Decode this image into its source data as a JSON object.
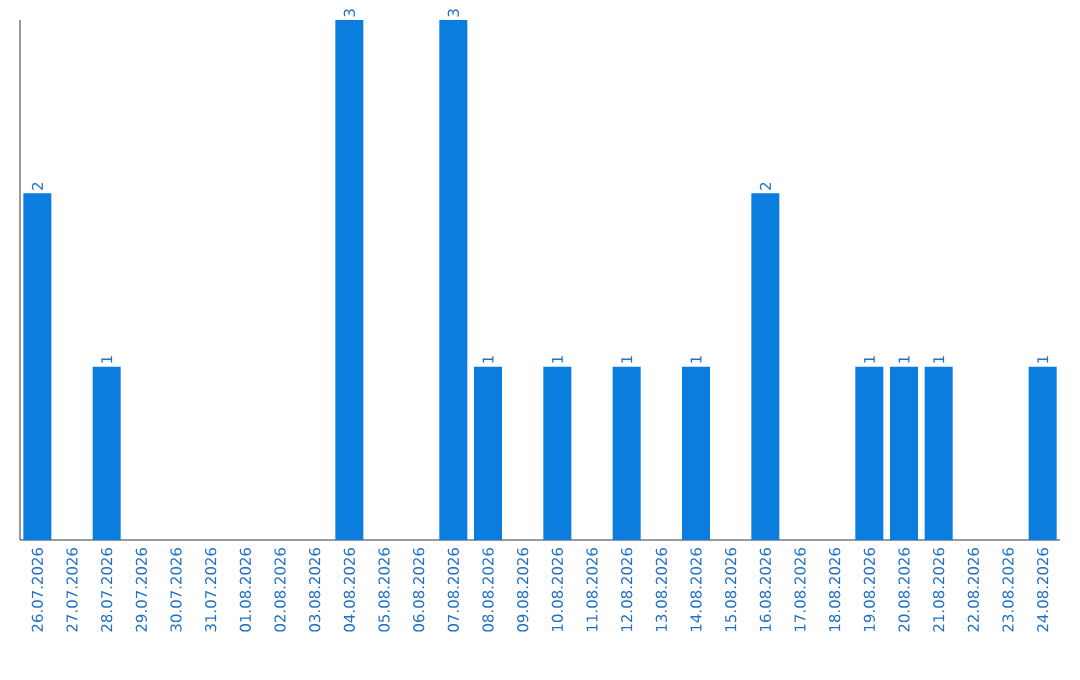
{
  "chart_data": {
    "type": "bar",
    "categories": [
      "26.07.2026",
      "27.07.2026",
      "28.07.2026",
      "29.07.2026",
      "30.07.2026",
      "31.07.2026",
      "01.08.2026",
      "02.08.2026",
      "03.08.2026",
      "04.08.2026",
      "05.08.2026",
      "06.08.2026",
      "07.08.2026",
      "08.08.2026",
      "09.08.2026",
      "10.08.2026",
      "11.08.2026",
      "12.08.2026",
      "13.08.2026",
      "14.08.2026",
      "15.08.2026",
      "16.08.2026",
      "17.08.2026",
      "18.08.2026",
      "19.08.2026",
      "20.08.2026",
      "21.08.2026",
      "22.08.2026",
      "23.08.2026",
      "24.08.2026"
    ],
    "values": [
      2,
      0,
      1,
      0,
      0,
      0,
      0,
      0,
      0,
      3,
      0,
      0,
      3,
      1,
      0,
      1,
      0,
      1,
      0,
      1,
      0,
      2,
      0,
      0,
      1,
      1,
      1,
      0,
      0,
      1
    ],
    "value_labels": [
      "2",
      null,
      "1",
      null,
      null,
      null,
      null,
      null,
      null,
      "3",
      null,
      null,
      "3",
      "1",
      null,
      "1",
      null,
      "1",
      null,
      "1",
      null,
      "2",
      null,
      null,
      "1",
      "1",
      "1",
      null,
      null,
      "1"
    ],
    "color": "#0b7ddf",
    "tick_labels": "x"
  }
}
